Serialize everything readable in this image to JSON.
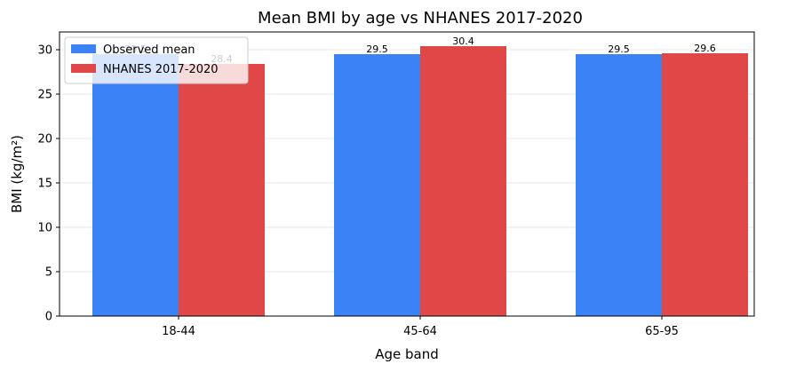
{
  "chart_data": {
    "type": "bar",
    "title": "Mean BMI by age vs NHANES 2017-2020",
    "xlabel": "Age band",
    "ylabel": "BMI (kg/m²)",
    "categories": [
      "18-44",
      "45-64",
      "65-95"
    ],
    "ylim": [
      0,
      32
    ],
    "yticks": [
      0,
      5,
      10,
      15,
      20,
      25,
      30
    ],
    "grid": "horizontal, light",
    "legend_position": "top-left",
    "series": [
      {
        "name": "Observed mean",
        "color": "#3b82f6",
        "values": [
          29.5,
          29.5,
          29.5
        ],
        "labels": [
          "29.5",
          "29.5",
          "29.5"
        ]
      },
      {
        "name": "NHANES 2017-2020",
        "color": "#e04848",
        "values": [
          28.4,
          30.4,
          29.6
        ],
        "labels": [
          "28.4",
          "30.4",
          "29.6"
        ]
      }
    ]
  }
}
